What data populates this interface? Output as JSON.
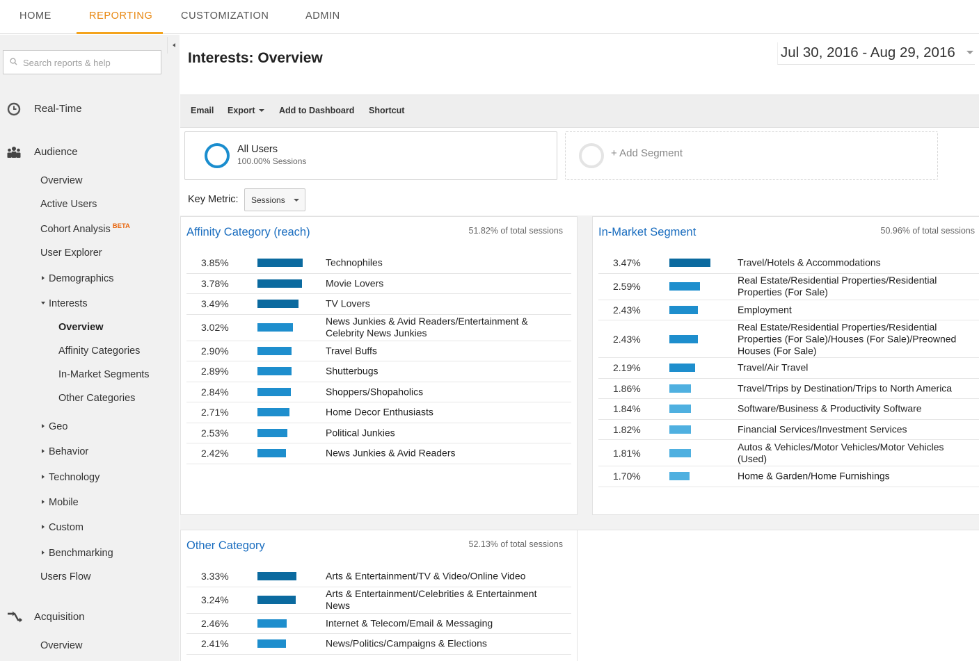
{
  "topnav": {
    "tabs": [
      {
        "label": "HOME",
        "active": false
      },
      {
        "label": "REPORTING",
        "active": true
      },
      {
        "label": "CUSTOMIZATION",
        "active": false
      },
      {
        "label": "ADMIN",
        "active": false
      }
    ]
  },
  "sidebar": {
    "search_placeholder": "Search reports & help",
    "realtime": "Real-Time",
    "audience": "Audience",
    "audience_items": {
      "overview": "Overview",
      "active_users": "Active Users",
      "cohort": "Cohort Analysis",
      "cohort_badge": "BETA",
      "user_explorer": "User Explorer",
      "demographics": "Demographics",
      "interests": "Interests",
      "interests_overview": "Overview",
      "affinity": "Affinity Categories",
      "inmarket": "In-Market Segments",
      "other": "Other Categories",
      "geo": "Geo",
      "behavior": "Behavior",
      "technology": "Technology",
      "mobile": "Mobile",
      "custom": "Custom",
      "benchmarking": "Benchmarking",
      "users_flow": "Users Flow"
    },
    "acquisition": "Acquisition",
    "acquisition_overview": "Overview"
  },
  "page": {
    "title": "Interests: Overview",
    "date_range": "Jul 30, 2016 - Aug 29, 2016"
  },
  "toolbar": {
    "email": "Email",
    "export": "Export",
    "add_dashboard": "Add to Dashboard",
    "shortcut": "Shortcut"
  },
  "segment": {
    "name": "All Users",
    "sub": "100.00% Sessions",
    "add_label": "+ Add Segment"
  },
  "key_metric": {
    "label": "Key Metric:",
    "value": "Sessions"
  },
  "colors": {
    "accent": "#f4a31c",
    "link": "#1a6dbf",
    "bar_dark": "#0b6a9f",
    "bar_mid": "#1e8ecd",
    "bar_light": "#4fb0e0"
  },
  "panels": {
    "affinity": {
      "title": "Affinity Category (reach)",
      "total": "51.82% of total sessions",
      "rows": [
        {
          "pct": "3.85%",
          "value": 3.85,
          "name": "Technophiles"
        },
        {
          "pct": "3.78%",
          "value": 3.78,
          "name": "Movie Lovers"
        },
        {
          "pct": "3.49%",
          "value": 3.49,
          "name": "TV Lovers"
        },
        {
          "pct": "3.02%",
          "value": 3.02,
          "name": "News Junkies & Avid Readers/Entertainment & Celebrity News Junkies"
        },
        {
          "pct": "2.90%",
          "value": 2.9,
          "name": "Travel Buffs"
        },
        {
          "pct": "2.89%",
          "value": 2.89,
          "name": "Shutterbugs"
        },
        {
          "pct": "2.84%",
          "value": 2.84,
          "name": "Shoppers/Shopaholics"
        },
        {
          "pct": "2.71%",
          "value": 2.71,
          "name": "Home Decor Enthusiasts"
        },
        {
          "pct": "2.53%",
          "value": 2.53,
          "name": "Political Junkies"
        },
        {
          "pct": "2.42%",
          "value": 2.42,
          "name": "News Junkies & Avid Readers"
        }
      ]
    },
    "inmarket": {
      "title": "In-Market Segment",
      "total": "50.96% of total sessions",
      "rows": [
        {
          "pct": "3.47%",
          "value": 3.47,
          "name": "Travel/Hotels & Accommodations"
        },
        {
          "pct": "2.59%",
          "value": 2.59,
          "name": "Real Estate/Residential Properties/Residential Properties (For Sale)"
        },
        {
          "pct": "2.43%",
          "value": 2.43,
          "name": "Employment"
        },
        {
          "pct": "2.43%",
          "value": 2.43,
          "name": "Real Estate/Residential Properties/Residential Properties (For Sale)/Houses (For Sale)/Preowned Houses (For Sale)"
        },
        {
          "pct": "2.19%",
          "value": 2.19,
          "name": "Travel/Air Travel"
        },
        {
          "pct": "1.86%",
          "value": 1.86,
          "name": "Travel/Trips by Destination/Trips to North America"
        },
        {
          "pct": "1.84%",
          "value": 1.84,
          "name": "Software/Business & Productivity Software"
        },
        {
          "pct": "1.82%",
          "value": 1.82,
          "name": "Financial Services/Investment Services"
        },
        {
          "pct": "1.81%",
          "value": 1.81,
          "name": "Autos & Vehicles/Motor Vehicles/Motor Vehicles (Used)"
        },
        {
          "pct": "1.70%",
          "value": 1.7,
          "name": "Home & Garden/Home Furnishings"
        }
      ]
    },
    "other": {
      "title": "Other Category",
      "total": "52.13% of total sessions",
      "rows": [
        {
          "pct": "3.33%",
          "value": 3.33,
          "name": "Arts & Entertainment/TV & Video/Online Video"
        },
        {
          "pct": "3.24%",
          "value": 3.24,
          "name": "Arts & Entertainment/Celebrities & Entertainment News"
        },
        {
          "pct": "2.46%",
          "value": 2.46,
          "name": "Internet & Telecom/Email & Messaging"
        },
        {
          "pct": "2.41%",
          "value": 2.41,
          "name": "News/Politics/Campaigns & Elections"
        }
      ]
    }
  }
}
